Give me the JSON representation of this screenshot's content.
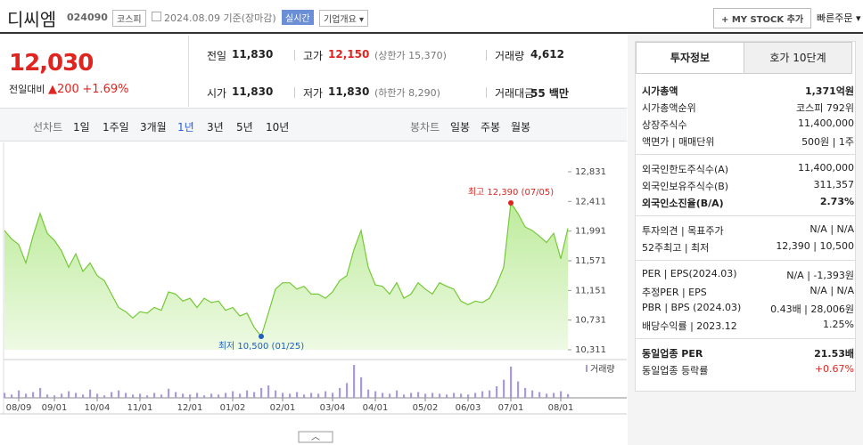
{
  "header": {
    "name": "디씨엠",
    "code": "024090",
    "market": "코스피",
    "date": "2024.08.09 기준(장마감)",
    "realtime": "실시간",
    "company_info": "기업개요",
    "my_stock": "+ MY STOCK 추가",
    "quick_order": "빠른주문"
  },
  "price": {
    "current": "12,030",
    "change_label": "전일대비",
    "change": "200",
    "change_pct": "+1.69%"
  },
  "summary": [
    {
      "label": "전일",
      "value": "11,830"
    },
    {
      "label": "고가",
      "value": "12,150",
      "extra": "(상한가 15,370)"
    },
    {
      "label": "거래량",
      "value": "4,612"
    },
    {
      "label": "시가",
      "value": "11,830"
    },
    {
      "label": "저가",
      "value": "11,830",
      "extra": "(하한가 8,290)"
    },
    {
      "label": "거래대금",
      "value": "55 백만"
    }
  ],
  "periods": {
    "label": "선차트",
    "items": [
      "1일",
      "1주일",
      "3개월",
      "1년",
      "3년",
      "5년",
      "10년"
    ],
    "active": 3
  },
  "candles": {
    "label": "봉차트",
    "items": [
      "일봉",
      "주봉",
      "월봉"
    ]
  },
  "chart_data": [
    {
      "type": "line",
      "color": "#74c936",
      "categories": [
        null,
        null,
        "08/09",
        null,
        null,
        null,
        null,
        "09/01",
        null,
        null,
        null,
        null,
        null,
        "10/04",
        null,
        null,
        null,
        null,
        null,
        "11/01",
        null,
        null,
        null,
        null,
        null,
        null,
        "12/01",
        null,
        null,
        null,
        null,
        null,
        "01/02",
        null,
        null,
        null,
        null,
        null,
        null,
        "02/01",
        null,
        null,
        null,
        null,
        null,
        null,
        "03/04",
        null,
        null,
        null,
        null,
        null,
        "04/01",
        null,
        null,
        null,
        null,
        null,
        null,
        "05/02",
        null,
        null,
        null,
        null,
        null,
        "06/03",
        null,
        null,
        null,
        null,
        null,
        "07/01",
        null,
        null,
        null,
        null,
        null,
        null,
        "08/01",
        null
      ],
      "values": [
        12000,
        11880,
        11800,
        11540,
        11920,
        12240,
        11960,
        11860,
        11710,
        11480,
        11670,
        11420,
        11540,
        11360,
        11290,
        11100,
        10910,
        10850,
        10760,
        10850,
        10830,
        10910,
        10870,
        11130,
        11100,
        11000,
        11040,
        10910,
        11040,
        10980,
        11000,
        10870,
        10910,
        10790,
        10830,
        10630,
        10500,
        10830,
        11170,
        11260,
        11260,
        11170,
        11210,
        11100,
        11100,
        11040,
        11130,
        11290,
        11360,
        11730,
        12000,
        11480,
        11230,
        11210,
        11100,
        11260,
        11040,
        11100,
        11260,
        11170,
        11100,
        11260,
        11210,
        11170,
        11000,
        10950,
        11000,
        10980,
        11040,
        11230,
        11480,
        12390,
        12240,
        12050,
        12000,
        11920,
        11830,
        11960,
        11600,
        12030
      ],
      "ylim": [
        10311,
        12831
      ],
      "yticks": [
        {
          "value": 12831,
          "label": "12,831"
        },
        {
          "value": 12411,
          "label": "12,411"
        },
        {
          "value": 11991,
          "label": "11,991"
        },
        {
          "value": 11571,
          "label": "11,571"
        },
        {
          "value": 11151,
          "label": "11,151"
        },
        {
          "value": 10731,
          "label": "10,731"
        },
        {
          "value": 10311,
          "label": "10,311"
        }
      ],
      "annotations": [
        {
          "text": "최고 12,390 (07/05)",
          "index": 71,
          "color": "#e0241f"
        },
        {
          "text": "최저 10,500 (01/25)",
          "index": 36,
          "color": "#1f5fbf"
        }
      ]
    },
    {
      "type": "bar",
      "name": "거래량",
      "color": "#a89cd2",
      "values": [
        6000,
        4000,
        9000,
        5000,
        7000,
        12000,
        4000,
        3000,
        5000,
        8000,
        6000,
        4000,
        10000,
        5000,
        3000,
        7000,
        9000,
        6000,
        4000,
        5000,
        3000,
        6000,
        4000,
        11000,
        7000,
        5000,
        4000,
        6000,
        3000,
        5000,
        4000,
        6000,
        8000,
        5000,
        9000,
        7000,
        12000,
        15000,
        9000,
        6000,
        5000,
        7000,
        4000,
        6000,
        5000,
        8000,
        6000,
        12000,
        18000,
        40000,
        25000,
        10000,
        8000,
        6000,
        5000,
        9000,
        4000,
        6000,
        7000,
        5000,
        6000,
        5000,
        4000,
        6000,
        5000,
        4000,
        6000,
        8000,
        9000,
        14000,
        22000,
        38000,
        20000,
        12000,
        9000,
        7000,
        5000,
        6000,
        8000,
        4612
      ]
    }
  ],
  "tabs": [
    "투자정보",
    "호가 10단계"
  ],
  "info": [
    [
      {
        "label": "시가총액",
        "value": "1,371억원",
        "bold": true
      },
      {
        "label": "시가총액순위",
        "value": "코스피 792위"
      },
      {
        "label": "상장주식수",
        "value": "11,400,000"
      },
      {
        "label": "액면가 | 매매단위",
        "value": "500원 | 1주"
      }
    ],
    [
      {
        "label": "외국인한도주식수(A)",
        "value": "11,400,000"
      },
      {
        "label": "외국인보유주식수(B)",
        "value": "311,357"
      },
      {
        "label": "외국인소진율(B/A)",
        "value": "2.73%",
        "bold": true
      }
    ],
    [
      {
        "label": "투자의견 | 목표주가",
        "value": "N/A | N/A"
      },
      {
        "label": "52주최고 | 최저",
        "value": "12,390 | 10,500"
      }
    ],
    [
      {
        "label": "PER | EPS(2024.03)",
        "value": "N/A | -1,393원"
      },
      {
        "label": "추정PER | EPS",
        "value": "N/A | N/A"
      },
      {
        "label": "PBR | BPS (2024.03)",
        "value": "0.43배 | 28,006원"
      },
      {
        "label": "배당수익률 | 2023.12",
        "value": "1.25%"
      }
    ],
    [
      {
        "label": "동일업종 PER",
        "value": "21.53배",
        "bold": true
      },
      {
        "label": "동일업종 등락률",
        "value": "+0.67%",
        "red": true
      }
    ]
  ]
}
